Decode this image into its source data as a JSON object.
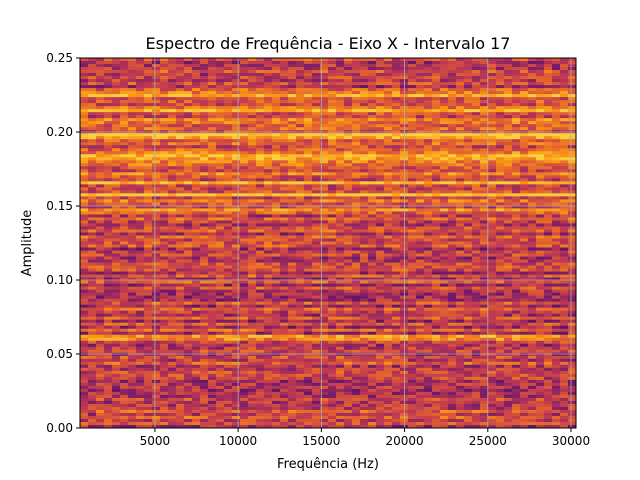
{
  "chart_data": {
    "type": "heatmap",
    "title": "Espectro de Frequência - Eixo X - Intervalo 17",
    "xlabel": "Frequência (Hz)",
    "ylabel": "Amplitude",
    "xlim": [
      500,
      30300
    ],
    "ylim": [
      0,
      0.25
    ],
    "x_ticks": [
      5000,
      10000,
      15000,
      20000,
      25000,
      30000
    ],
    "x_tick_labels": [
      "5000",
      "10000",
      "15000",
      "20000",
      "25000",
      "30000"
    ],
    "y_ticks": [
      0.0,
      0.05,
      0.1,
      0.15,
      0.2,
      0.25
    ],
    "y_tick_labels": [
      "0.00",
      "0.05",
      "0.10",
      "0.15",
      "0.20",
      "0.25"
    ],
    "grid": true,
    "colormap": "inferno",
    "bright_bands_amplitude": [
      0.061,
      0.148,
      0.158,
      0.165,
      0.183,
      0.197,
      0.215,
      0.225
    ],
    "colors": {
      "grid": "#b0b0b0",
      "band_bright": "#ffb000",
      "base": "#c8403a",
      "dark": "#6a1a5c"
    }
  }
}
